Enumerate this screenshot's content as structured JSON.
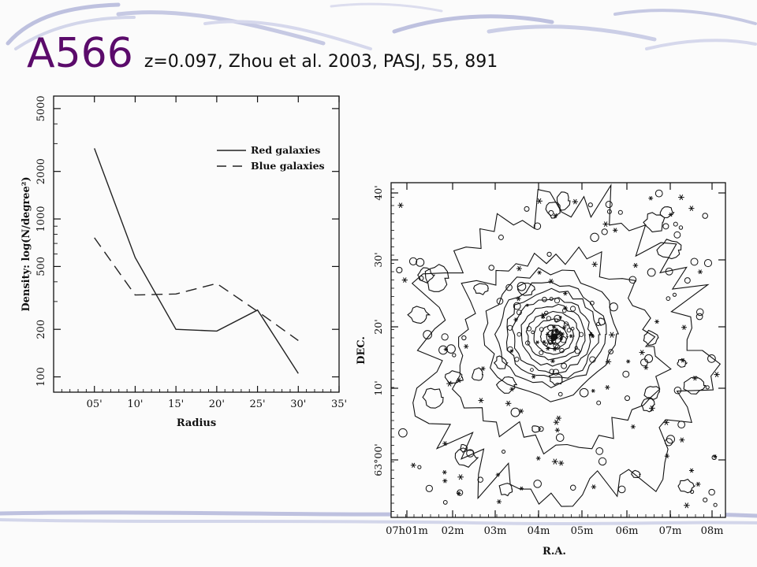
{
  "slide": {
    "title": "A566",
    "subtitle": "z=0.097, Zhou et al. 2003, PASJ, 55, 891"
  },
  "colors": {
    "title": "#5b0b6b",
    "swoosh": "#8d93c9",
    "ink": "#111111"
  },
  "chart_data": [
    {
      "type": "line",
      "xlabel": "Radius",
      "ylabel": "Density: log(N/degree²)",
      "y_scale": "log",
      "x_ticks": [
        "05'",
        "10'",
        "15'",
        "20'",
        "25'",
        "30'",
        "35'"
      ],
      "y_ticks": [
        "100",
        "200",
        "500",
        "1000",
        "2000",
        "5000"
      ],
      "xlim": [
        0,
        35
      ],
      "ylim": [
        80,
        6000
      ],
      "legend_position": "top-right",
      "series": [
        {
          "name": "Red galaxies",
          "style": "solid",
          "x": [
            5,
            10,
            15,
            20,
            25,
            30
          ],
          "values": [
            2800,
            570,
            200,
            195,
            265,
            105
          ]
        },
        {
          "name": "Blue galaxies",
          "style": "dashed",
          "x": [
            5,
            10,
            15,
            20,
            25,
            30
          ],
          "values": [
            760,
            330,
            335,
            390,
            260,
            170
          ]
        }
      ]
    },
    {
      "type": "contour",
      "xlabel": "R.A.",
      "ylabel": "DEC.",
      "x_ticks": [
        "07h01m",
        "02m",
        "03m",
        "04m",
        "05m",
        "06m",
        "07m",
        "08m"
      ],
      "y_ticks": [
        "63°00'",
        "10'",
        "20'",
        "30'",
        "40'"
      ],
      "markers": [
        "circle",
        "asterisk"
      ]
    }
  ]
}
